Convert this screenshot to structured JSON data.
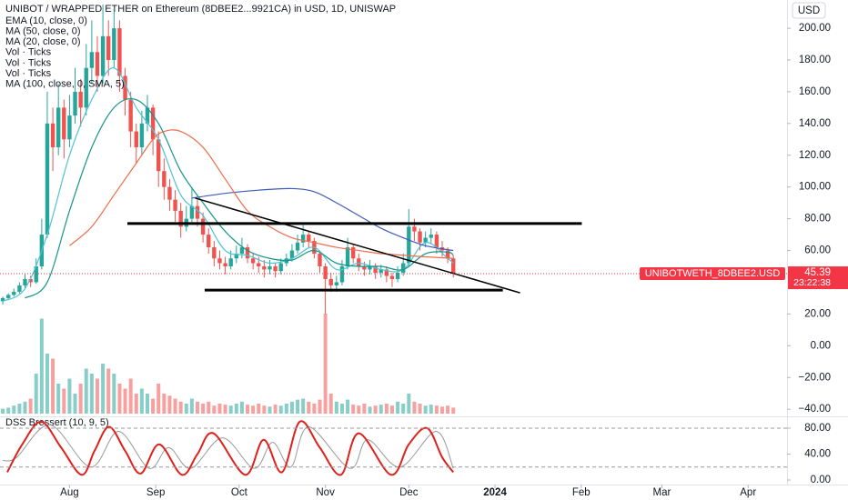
{
  "chart_data": [
    {
      "type": "candlestick",
      "title": "UNIBOT / WRAPPED ETHER on Ethereum (8DBEE2...9921CA) in USD, 1D, UNISWAP",
      "currency": "USD",
      "up_color": "#26a69a",
      "down_color": "#ef5350",
      "xlim": [
        -0.5,
        141
      ],
      "xticks": [
        {
          "value": 12,
          "label": "Aug"
        },
        {
          "value": 27.5,
          "label": "Sep"
        },
        {
          "value": 42.5,
          "label": "Oct"
        },
        {
          "value": 58,
          "label": "Nov"
        },
        {
          "value": 73,
          "label": "Dec"
        },
        {
          "value": 88.5,
          "label": "2024"
        },
        {
          "value": 104,
          "label": "Feb"
        },
        {
          "value": 118.5,
          "label": "Mar"
        },
        {
          "value": 134,
          "label": "Apr"
        }
      ],
      "ylim": [
        -44.5,
        217.8
      ],
      "yticks": [
        {
          "value": 200,
          "label": "200.00"
        },
        {
          "value": 180,
          "label": "180.00"
        },
        {
          "value": 160,
          "label": "160.00"
        },
        {
          "value": 140,
          "label": "140.00"
        },
        {
          "value": 120,
          "label": "120.00"
        },
        {
          "value": 100,
          "label": "100.00"
        },
        {
          "value": 80,
          "label": "80.00"
        },
        {
          "value": 60,
          "label": "60.00"
        },
        {
          "value": 20,
          "label": "20.00"
        },
        {
          "value": 0,
          "label": "0.00"
        },
        {
          "value": -20,
          "label": "−20.00"
        },
        {
          "value": -40,
          "label": "−40.00"
        }
      ],
      "grid": false,
      "candles": [
        [
          28,
          31,
          26,
          30
        ],
        [
          30,
          33,
          29,
          32
        ],
        [
          32,
          36,
          31,
          34
        ],
        [
          34,
          40,
          33,
          38
        ],
        [
          38,
          45,
          36,
          42
        ],
        [
          42,
          44,
          37,
          40
        ],
        [
          40,
          55,
          39,
          50
        ],
        [
          50,
          80,
          48,
          70
        ],
        [
          70,
          160,
          68,
          140
        ],
        [
          140,
          150,
          110,
          125
        ],
        [
          125,
          165,
          120,
          150
        ],
        [
          150,
          155,
          118,
          130
        ],
        [
          130,
          158,
          125,
          145
        ],
        [
          145,
          175,
          140,
          160
        ],
        [
          160,
          168,
          138,
          150
        ],
        [
          150,
          190,
          145,
          175
        ],
        [
          175,
          205,
          165,
          185
        ],
        [
          185,
          195,
          160,
          170
        ],
        [
          170,
          215,
          165,
          195
        ],
        [
          195,
          205,
          170,
          180
        ],
        [
          180,
          212,
          175,
          200
        ],
        [
          200,
          205,
          160,
          170
        ],
        [
          170,
          175,
          145,
          155
        ],
        [
          155,
          160,
          125,
          135
        ],
        [
          135,
          140,
          115,
          125
        ],
        [
          125,
          148,
          120,
          140
        ],
        [
          140,
          158,
          135,
          150
        ],
        [
          150,
          152,
          120,
          130
        ],
        [
          130,
          135,
          100,
          110
        ],
        [
          110,
          118,
          92,
          100
        ],
        [
          100,
          105,
          85,
          92
        ],
        [
          92,
          98,
          78,
          85
        ],
        [
          85,
          90,
          68,
          75
        ],
        [
          75,
          88,
          72,
          80
        ],
        [
          80,
          100,
          78,
          88
        ],
        [
          88,
          92,
          75,
          80
        ],
        [
          80,
          84,
          65,
          70
        ],
        [
          70,
          74,
          58,
          62
        ],
        [
          62,
          66,
          50,
          55
        ],
        [
          55,
          60,
          48,
          52
        ],
        [
          52,
          56,
          45,
          50
        ],
        [
          50,
          60,
          48,
          55
        ],
        [
          55,
          63,
          52,
          58
        ],
        [
          58,
          68,
          55,
          62
        ],
        [
          62,
          64,
          52,
          55
        ],
        [
          55,
          58,
          48,
          52
        ],
        [
          52,
          56,
          46,
          50
        ],
        [
          50,
          54,
          43,
          48
        ],
        [
          48,
          54,
          45,
          50
        ],
        [
          50,
          52,
          43,
          47
        ],
        [
          47,
          55,
          45,
          52
        ],
        [
          52,
          58,
          50,
          55
        ],
        [
          55,
          64,
          53,
          60
        ],
        [
          60,
          70,
          58,
          65
        ],
        [
          65,
          76,
          62,
          70
        ],
        [
          70,
          72,
          62,
          66
        ],
        [
          66,
          68,
          55,
          58
        ],
        [
          58,
          60,
          46,
          50
        ],
        [
          50,
          52,
          20,
          42
        ],
        [
          42,
          46,
          34,
          38
        ],
        [
          38,
          44,
          34,
          40
        ],
        [
          40,
          54,
          38,
          50
        ],
        [
          50,
          68,
          48,
          62
        ],
        [
          62,
          64,
          52,
          55
        ],
        [
          55,
          58,
          47,
          50
        ],
        [
          50,
          53,
          44,
          48
        ],
        [
          48,
          54,
          45,
          50
        ],
        [
          50,
          52,
          42,
          46
        ],
        [
          46,
          51,
          43,
          48
        ],
        [
          48,
          50,
          40,
          44
        ],
        [
          44,
          46,
          37,
          42
        ],
        [
          42,
          50,
          40,
          46
        ],
        [
          46,
          58,
          44,
          52
        ],
        [
          52,
          86,
          50,
          75
        ],
        [
          75,
          80,
          66,
          72
        ],
        [
          72,
          74,
          60,
          65
        ],
        [
          65,
          72,
          62,
          68
        ],
        [
          68,
          74,
          64,
          70
        ],
        [
          70,
          72,
          58,
          62
        ],
        [
          62,
          66,
          56,
          60
        ],
        [
          60,
          62,
          52,
          55
        ],
        [
          55,
          57,
          43,
          45.39
        ]
      ],
      "series": [
        {
          "name": "EMA (10, close, 0)",
          "color": "#4dc3d6",
          "x": [
            0,
            4,
            8,
            12,
            16,
            20,
            24,
            28,
            32,
            36,
            40,
            44,
            48,
            52,
            56,
            60,
            64,
            68,
            72,
            76,
            80,
            81
          ],
          "values": [
            28,
            36,
            70,
            120,
            155,
            175,
            150,
            130,
            95,
            82,
            60,
            57,
            52,
            55,
            62,
            48,
            52,
            48,
            48,
            65,
            55,
            52
          ]
        },
        {
          "name": "MA (50, close, 0)",
          "color": "#3f5bb8",
          "x": [
            34,
            40,
            46,
            52,
            56,
            60,
            64,
            68,
            72,
            76,
            81
          ],
          "values": [
            93,
            96,
            98,
            99,
            97,
            90,
            82,
            74,
            68,
            63,
            60
          ]
        },
        {
          "name": "MA (20, close, 0)",
          "color": "#15958a",
          "x": [
            4,
            8,
            12,
            16,
            20,
            24,
            28,
            32,
            36,
            40,
            44,
            48,
            52,
            56,
            60,
            64,
            68,
            72,
            76,
            80,
            81
          ],
          "values": [
            30,
            40,
            85,
            125,
            150,
            155,
            140,
            110,
            90,
            72,
            60,
            55,
            54,
            60,
            52,
            50,
            50,
            48,
            58,
            59,
            57
          ]
        },
        {
          "name": "MA (100, close, 0, SMA, 5)",
          "color": "#ef6c4b",
          "x": [
            12,
            16,
            20,
            24,
            27,
            29,
            32,
            36,
            40,
            44,
            48,
            52,
            56,
            60,
            64,
            68,
            72,
            76,
            81
          ],
          "values": [
            63,
            75,
            95,
            115,
            130,
            135,
            135,
            125,
            105,
            85,
            75,
            68,
            65,
            62,
            60,
            58,
            57,
            56,
            55
          ]
        }
      ],
      "drawings": [
        {
          "x": [
            22.4,
            104.1
          ],
          "y": [
            77,
            77
          ]
        },
        {
          "x": [
            36.3,
            89.9
          ],
          "y": [
            35,
            35
          ]
        },
        {
          "x": [
            34.6,
            93
          ],
          "y": [
            93,
            33.3
          ]
        }
      ],
      "last_label": "UNIBOTWETH_8DBEE2.USD",
      "last_price": 45.39,
      "countdown": "23:22:38"
    },
    {
      "type": "bar",
      "legend": [
        "Vol · Ticks",
        "Vol · Ticks",
        "Vol · Ticks"
      ],
      "ylim": [
        0,
        100
      ],
      "values": [
        5,
        6,
        8,
        10,
        12,
        15,
        40,
        95,
        60,
        55,
        30,
        25,
        35,
        20,
        30,
        45,
        40,
        35,
        50,
        45,
        40,
        30,
        25,
        35,
        20,
        25,
        20,
        15,
        30,
        20,
        18,
        15,
        12,
        10,
        15,
        12,
        10,
        12,
        8,
        10,
        9,
        8,
        10,
        12,
        9,
        8,
        10,
        8,
        7,
        9,
        8,
        10,
        12,
        14,
        15,
        12,
        10,
        14,
        100,
        20,
        12,
        10,
        14,
        9,
        8,
        10,
        7,
        8,
        9,
        10,
        8,
        12,
        10,
        20,
        12,
        10,
        8,
        9,
        8,
        7,
        8,
        6
      ]
    },
    {
      "type": "line",
      "title": "DSS Bressert (10, 9, 5)",
      "ylim": [
        -7,
        96.8
      ],
      "yticks": [
        {
          "value": 80,
          "label": "80.00"
        },
        {
          "value": 40,
          "label": "40.00"
        },
        {
          "value": 0,
          "label": "0.00"
        }
      ],
      "levels": [
        80,
        20
      ],
      "series": [
        {
          "color": "#999999",
          "x": [
            0,
            2.5,
            8.5,
            15.8,
            20.8,
            26.3,
            29.8,
            33.8,
            39.5,
            45.2,
            48.5,
            51.8,
            55,
            62.4,
            65.6,
            71.4,
            77.9,
            81
          ],
          "values": [
            30,
            35,
            85,
            20,
            75,
            18,
            50,
            18,
            65,
            18,
            58,
            20,
            82,
            18,
            62,
            20,
            75,
            18
          ]
        },
        {
          "color": "#e0201b",
          "x": [
            0.8,
            3.5,
            6.9,
            10.5,
            14.2,
            16.5,
            19.1,
            22,
            24.8,
            28.1,
            32.2,
            35,
            37.9,
            43.6,
            46.9,
            50.2,
            53.4,
            57,
            60.8,
            64,
            69.8,
            73,
            76.3,
            79,
            81
          ],
          "values": [
            12,
            55,
            90,
            50,
            8,
            45,
            82,
            45,
            10,
            55,
            8,
            40,
            72,
            8,
            62,
            12,
            90,
            50,
            8,
            72,
            8,
            55,
            80,
            35,
            12
          ]
        }
      ]
    }
  ]
}
